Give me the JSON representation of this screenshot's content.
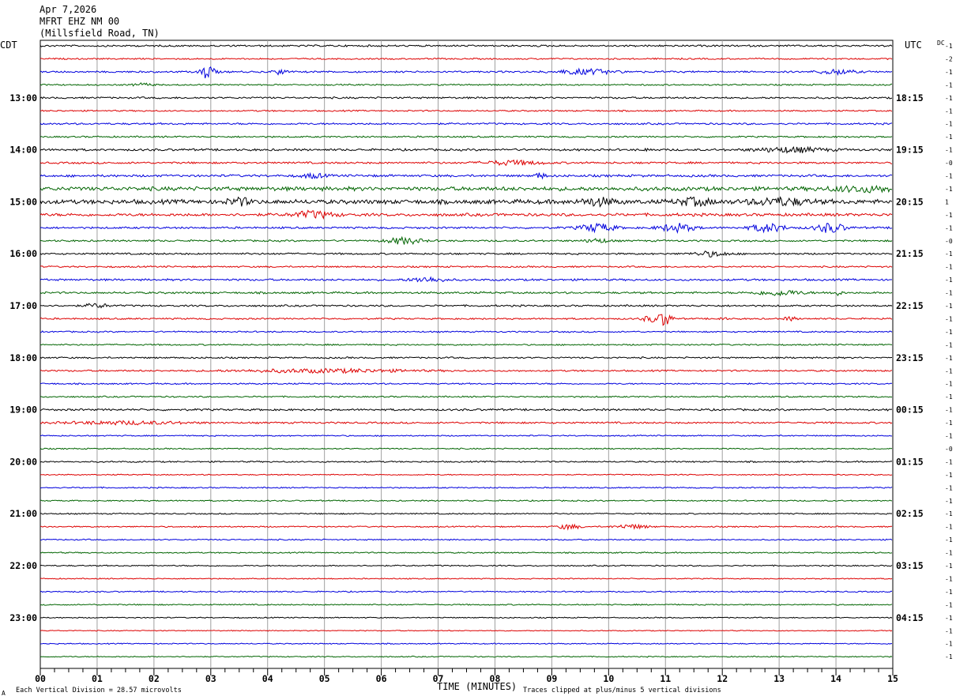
{
  "header": {
    "date": "Apr 7,2026",
    "station": "MFRT EHZ NM 00",
    "location": "(Millsfield Road, TN)"
  },
  "labels": {
    "left_zone": "CDT",
    "right_zone": "UTC",
    "dc": "DC",
    "xlabel": "TIME (MINUTES)",
    "vertical_division": "Each Vertical Division =   28.57 microvolts",
    "clip_note": "Traces clipped at plus/minus 5 vertical divisions",
    "corner_mark": "A"
  },
  "chart_data": {
    "type": "line",
    "title": "MFRT EHZ NM 00",
    "xlabel": "TIME (MINUTES)",
    "xlim": [
      0,
      15
    ],
    "x_ticks": [
      "00",
      "01",
      "02",
      "03",
      "04",
      "05",
      "06",
      "07",
      "08",
      "09",
      "10",
      "11",
      "12",
      "13",
      "14",
      "15"
    ],
    "trace_count": 48,
    "trace_colors": [
      "#000000",
      "#dd0000",
      "#0000dd",
      "#006400"
    ],
    "left_hour_labels": [
      {
        "trace": 4,
        "label": "13:00"
      },
      {
        "trace": 8,
        "label": "14:00"
      },
      {
        "trace": 12,
        "label": "15:00"
      },
      {
        "trace": 16,
        "label": "16:00"
      },
      {
        "trace": 20,
        "label": "17:00"
      },
      {
        "trace": 24,
        "label": "18:00"
      },
      {
        "trace": 28,
        "label": "19:00"
      },
      {
        "trace": 32,
        "label": "20:00"
      },
      {
        "trace": 36,
        "label": "21:00"
      },
      {
        "trace": 40,
        "label": "22:00"
      },
      {
        "trace": 44,
        "label": "23:00"
      }
    ],
    "right_hour_labels": [
      {
        "trace": 4,
        "label": "18:15"
      },
      {
        "trace": 8,
        "label": "19:15"
      },
      {
        "trace": 12,
        "label": "20:15"
      },
      {
        "trace": 16,
        "label": "21:15"
      },
      {
        "trace": 20,
        "label": "22:15"
      },
      {
        "trace": 24,
        "label": "23:15"
      },
      {
        "trace": 28,
        "label": "00:15"
      },
      {
        "trace": 32,
        "label": "01:15"
      },
      {
        "trace": 36,
        "label": "02:15"
      },
      {
        "trace": 40,
        "label": "03:15"
      },
      {
        "trace": 44,
        "label": "04:15"
      }
    ],
    "dc_offsets": [
      "-1",
      "-2",
      "-1",
      "-1",
      "-1",
      "-1",
      "-1",
      "-1",
      "-1",
      "-0",
      "-1",
      "-1",
      "1",
      "-1",
      "-1",
      "-0",
      "-1",
      "-1",
      "-1",
      "-1",
      "-1",
      "-1",
      "-1",
      "-1",
      "-1",
      "-1",
      "-1",
      "-1",
      "-1",
      "-1",
      "-1",
      "-0",
      "-1",
      "-1",
      "-1",
      "-1",
      "-1",
      "-1",
      "-1",
      "-1",
      "-1",
      "-1",
      "-1",
      "-1",
      "-1",
      "-1",
      "-1",
      "-1"
    ],
    "trace_noise": [
      1,
      0.8,
      1,
      0.8,
      1,
      0.8,
      1,
      0.9,
      1.2,
      1.1,
      1.3,
      2.2,
      2.4,
      1.6,
      1.1,
      1.0,
      1,
      0.9,
      1.1,
      1.1,
      1,
      0.9,
      0.8,
      0.8,
      0.9,
      0.9,
      0.8,
      0.8,
      1.1,
      1.0,
      0.7,
      0.7,
      0.8,
      0.6,
      0.7,
      0.7,
      0.7,
      0.7,
      0.7,
      0.7,
      0.7,
      0.6,
      0.7,
      0.7,
      0.6,
      0.5,
      0.6,
      0.6
    ],
    "events": [
      {
        "trace": 2,
        "minute": 2.95,
        "amp": 9,
        "dur": 0.12
      },
      {
        "trace": 2,
        "minute": 4.2,
        "amp": 3,
        "dur": 0.12
      },
      {
        "trace": 2,
        "minute": 9.6,
        "amp": 3,
        "dur": 0.5
      },
      {
        "trace": 2,
        "minute": 14.0,
        "amp": 3,
        "dur": 0.3
      },
      {
        "trace": 3,
        "minute": 1.8,
        "amp": 2,
        "dur": 0.15
      },
      {
        "trace": 8,
        "minute": 13.2,
        "amp": 3,
        "dur": 0.6
      },
      {
        "trace": 8,
        "minute": 10.7,
        "amp": 3,
        "dur": 0.05
      },
      {
        "trace": 9,
        "minute": 8.3,
        "amp": 2.5,
        "dur": 0.5
      },
      {
        "trace": 10,
        "minute": 4.8,
        "amp": 2.5,
        "dur": 0.2
      },
      {
        "trace": 10,
        "minute": 8.8,
        "amp": 4,
        "dur": 0.08
      },
      {
        "trace": 11,
        "minute": 14.5,
        "amp": 3,
        "dur": 0.6
      },
      {
        "trace": 12,
        "minute": 3.5,
        "amp": 4,
        "dur": 0.2
      },
      {
        "trace": 12,
        "minute": 9.8,
        "amp": 4,
        "dur": 0.3
      },
      {
        "trace": 12,
        "minute": 11.5,
        "amp": 4,
        "dur": 0.3
      },
      {
        "trace": 12,
        "minute": 13.0,
        "amp": 4,
        "dur": 0.5
      },
      {
        "trace": 13,
        "minute": 4.8,
        "amp": 4,
        "dur": 0.35
      },
      {
        "trace": 14,
        "minute": 9.8,
        "amp": 5,
        "dur": 0.3
      },
      {
        "trace": 14,
        "minute": 11.2,
        "amp": 5,
        "dur": 0.3
      },
      {
        "trace": 14,
        "minute": 12.8,
        "amp": 5,
        "dur": 0.3
      },
      {
        "trace": 14,
        "minute": 13.9,
        "amp": 6,
        "dur": 0.25
      },
      {
        "trace": 15,
        "minute": 6.4,
        "amp": 4,
        "dur": 0.3
      },
      {
        "trace": 15,
        "minute": 9.8,
        "amp": 2.5,
        "dur": 0.2
      },
      {
        "trace": 16,
        "minute": 11.8,
        "amp": 3,
        "dur": 0.3
      },
      {
        "trace": 18,
        "minute": 6.8,
        "amp": 3,
        "dur": 0.3
      },
      {
        "trace": 19,
        "minute": 13.0,
        "amp": 3,
        "dur": 0.4
      },
      {
        "trace": 19,
        "minute": 14.0,
        "amp": 3,
        "dur": 0.1
      },
      {
        "trace": 20,
        "minute": 1.0,
        "amp": 2.5,
        "dur": 0.2
      },
      {
        "trace": 21,
        "minute": 11.0,
        "amp": 10,
        "dur": 0.1
      },
      {
        "trace": 21,
        "minute": 10.75,
        "amp": 4,
        "dur": 0.15
      },
      {
        "trace": 21,
        "minute": 12.0,
        "amp": 3,
        "dur": 0.05
      },
      {
        "trace": 21,
        "minute": 13.2,
        "amp": 2.5,
        "dur": 0.1
      },
      {
        "trace": 25,
        "minute": 5.0,
        "amp": 2,
        "dur": 1.5
      },
      {
        "trace": 29,
        "minute": 1.5,
        "amp": 1.8,
        "dur": 1.0
      },
      {
        "trace": 37,
        "minute": 9.3,
        "amp": 3,
        "dur": 0.2
      },
      {
        "trace": 37,
        "minute": 10.4,
        "amp": 2.5,
        "dur": 0.3
      }
    ]
  }
}
